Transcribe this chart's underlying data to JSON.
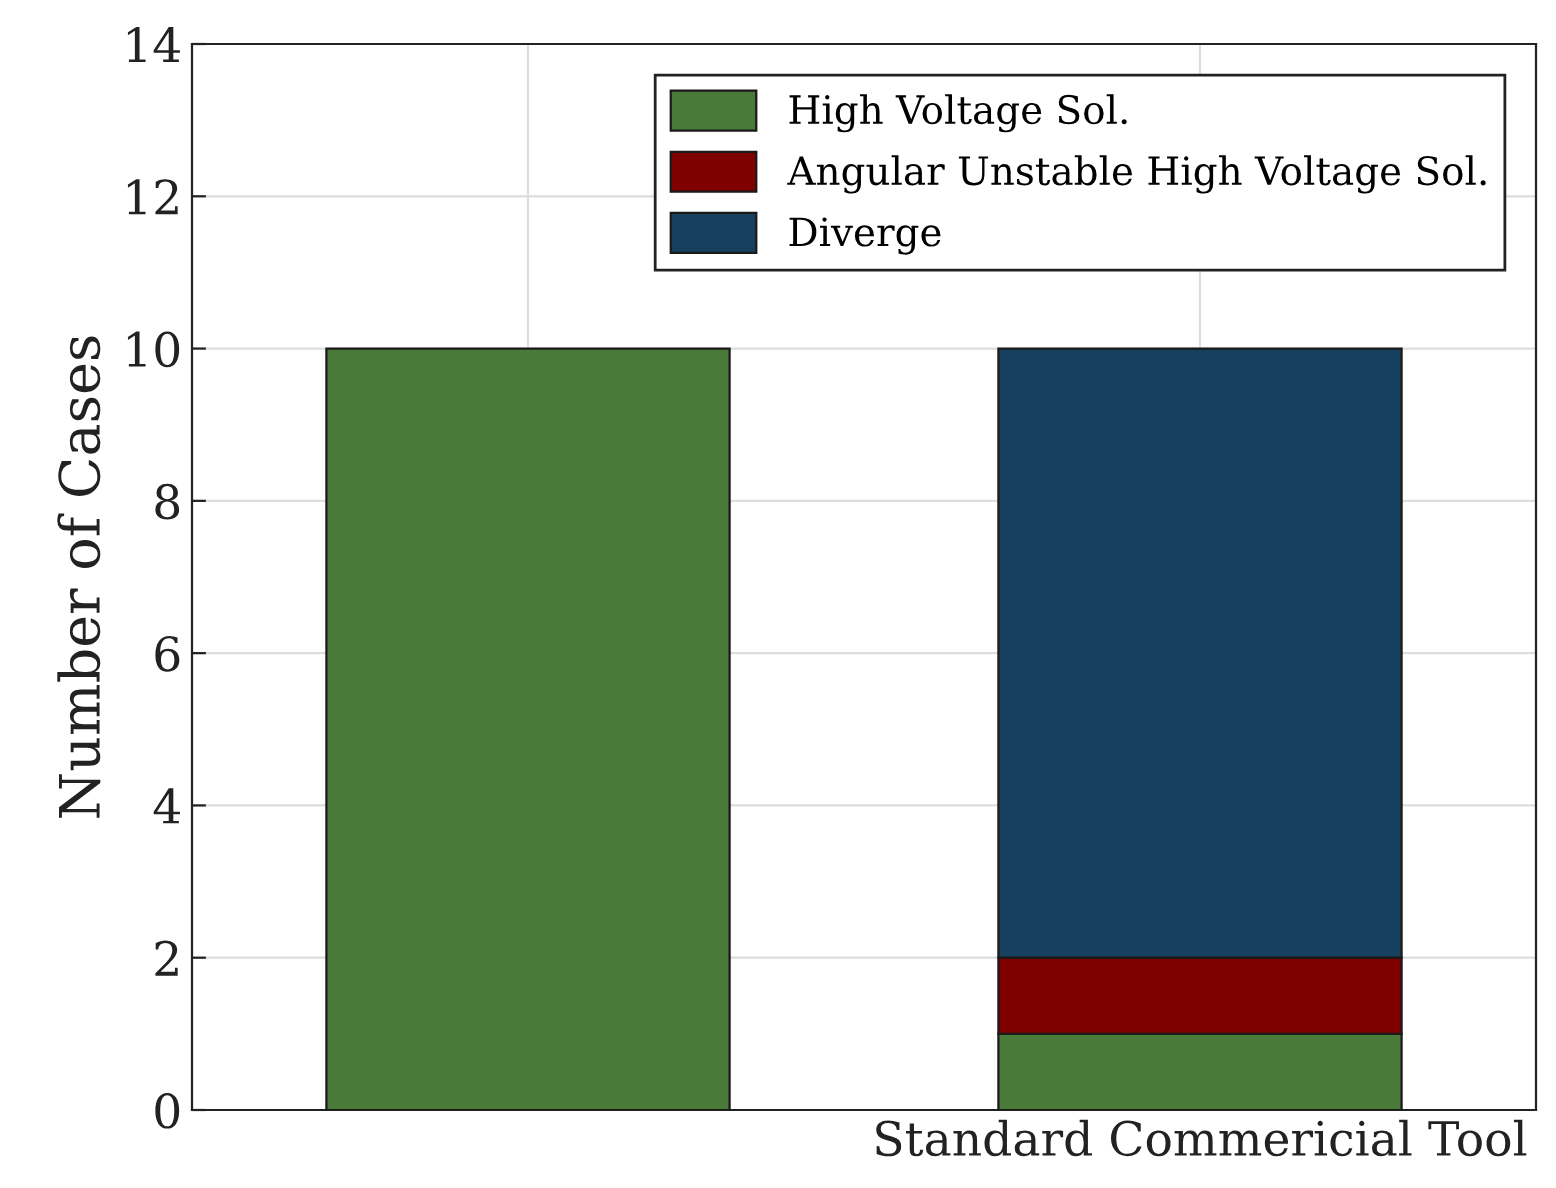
{
  "chart_data": {
    "type": "bar",
    "stacked": true,
    "ylabel": "Number of Cases",
    "categories": [
      null,
      "Standard Commericial Tool"
    ],
    "series": [
      {
        "name": "High Voltage Sol.",
        "color": "#4a7a38",
        "values": [
          10,
          1
        ]
      },
      {
        "name": "Angular Unstable High Voltage Sol.",
        "color": "#800000",
        "values": [
          0,
          1
        ]
      },
      {
        "name": "Diverge",
        "color": "#17405e",
        "values": [
          0,
          8
        ]
      }
    ],
    "ylim": [
      0,
      14
    ],
    "yticks": [
      0,
      2,
      4,
      6,
      8,
      10,
      12,
      14
    ],
    "grid": true,
    "legend": "top right"
  }
}
